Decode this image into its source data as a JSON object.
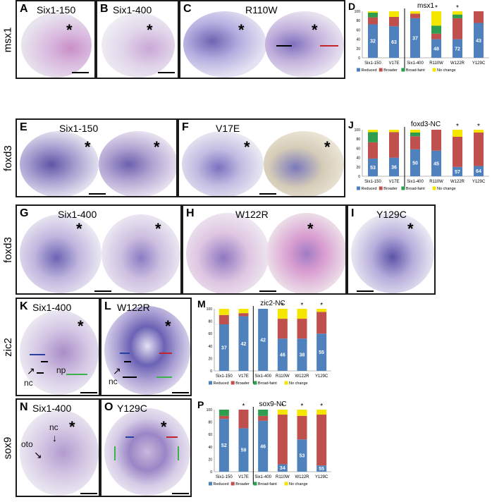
{
  "figure": {
    "row_labels": [
      "msx1",
      "foxd3",
      "foxd3",
      "zic2",
      "sox9"
    ],
    "panels": {
      "A": {
        "letter": "A",
        "title": "Six1-150"
      },
      "B": {
        "letter": "B",
        "title": "Six1-400"
      },
      "C": {
        "letter": "C",
        "title": "R110W"
      },
      "D": {
        "letter": "D"
      },
      "E": {
        "letter": "E",
        "title": "Six1-150"
      },
      "F": {
        "letter": "F",
        "title": "V17E"
      },
      "J": {
        "letter": "J"
      },
      "G": {
        "letter": "G",
        "title": "Six1-400"
      },
      "H": {
        "letter": "H",
        "title": "W122R"
      },
      "I": {
        "letter": "I",
        "title": "Y129C"
      },
      "K": {
        "letter": "K",
        "title": "Six1-400"
      },
      "L": {
        "letter": "L",
        "title": "W122R"
      },
      "M": {
        "letter": "M"
      },
      "N": {
        "letter": "N",
        "title": "Six1-400"
      },
      "O": {
        "letter": "O",
        "title": "Y129C"
      },
      "P": {
        "letter": "P"
      }
    },
    "asterisk": "*",
    "tissue_labels": {
      "nc": "nc",
      "np": "np",
      "oto": "oto"
    },
    "colors": {
      "embryo_bg": "#ececf2",
      "stain_purple": "#5b4b9c",
      "stain_magenta": "#c86bb8",
      "marker_blue": "#2a3fa0",
      "marker_red": "#c0262b",
      "marker_green": "#3cb04a"
    }
  },
  "chart_data": [
    {
      "id": "D",
      "type": "bar",
      "stacked": true,
      "title": "msx1",
      "categories": [
        "Six1-150",
        "V17E",
        "Six1-400",
        "R110W",
        "W122R",
        "Y129C"
      ],
      "n_labels": [
        "32",
        "63",
        "37",
        "48",
        "72",
        "43"
      ],
      "significant": [
        "",
        "",
        "",
        "*",
        "*",
        ""
      ],
      "separator_after": 1,
      "ylim": [
        0,
        100
      ],
      "yticks": [
        0,
        20,
        40,
        60,
        80,
        100
      ],
      "series": [
        {
          "name": "Reduced",
          "color": "#4f81bd",
          "values": [
            72,
            68,
            85,
            40,
            40,
            75
          ]
        },
        {
          "name": "Broader",
          "color": "#c0504d",
          "values": [
            15,
            20,
            10,
            12,
            45,
            25
          ]
        },
        {
          "name": "Broad-faint",
          "color": "#2e9e4e",
          "values": [
            10,
            0,
            0,
            17,
            8,
            0
          ]
        },
        {
          "name": "No change",
          "color": "#f5e600",
          "values": [
            3,
            12,
            5,
            31,
            7,
            0
          ]
        }
      ]
    },
    {
      "id": "J",
      "type": "bar",
      "stacked": true,
      "title": "foxd3-NC",
      "categories": [
        "Six1-150",
        "V17E",
        "Six1-400",
        "R110W",
        "W122R",
        "Y129C"
      ],
      "n_labels": [
        "53",
        "36",
        "50",
        "45",
        "57",
        "64"
      ],
      "significant": [
        "",
        "",
        "",
        "",
        "*",
        "*"
      ],
      "separator_after": 1,
      "ylim": [
        0,
        100
      ],
      "yticks": [
        0,
        20,
        40,
        60,
        80,
        100
      ],
      "series": [
        {
          "name": "Reduced",
          "color": "#4f81bd",
          "values": [
            38,
            40,
            58,
            55,
            20,
            22
          ]
        },
        {
          "name": "Broader",
          "color": "#c0504d",
          "values": [
            35,
            55,
            28,
            45,
            65,
            72
          ]
        },
        {
          "name": "Broad-faint",
          "color": "#2e9e4e",
          "values": [
            22,
            0,
            8,
            0,
            0,
            0
          ]
        },
        {
          "name": "No change",
          "color": "#f5e600",
          "values": [
            5,
            5,
            6,
            0,
            15,
            6
          ]
        }
      ]
    },
    {
      "id": "M",
      "type": "bar",
      "stacked": true,
      "title": "zic2-NC",
      "categories": [
        "Six1-150",
        "V17E",
        "Six1-400",
        "R110W",
        "W122R",
        "Y129C"
      ],
      "n_labels": [
        "37",
        "42",
        "42",
        "46",
        "38",
        "55"
      ],
      "significant": [
        "",
        "",
        "",
        "*",
        "*",
        "*"
      ],
      "separator_after": 1,
      "ylim": [
        0,
        100
      ],
      "yticks": [
        0,
        20,
        40,
        60,
        80,
        100
      ],
      "series": [
        {
          "name": "Reduced",
          "color": "#4f81bd",
          "values": [
            75,
            88,
            100,
            52,
            52,
            60
          ]
        },
        {
          "name": "Broader",
          "color": "#c0504d",
          "values": [
            15,
            5,
            0,
            32,
            32,
            35
          ]
        },
        {
          "name": "Broad-faint",
          "color": "#2e9e4e",
          "values": [
            0,
            0,
            0,
            0,
            0,
            0
          ]
        },
        {
          "name": "No change",
          "color": "#f5e600",
          "values": [
            10,
            7,
            0,
            16,
            16,
            5
          ]
        }
      ]
    },
    {
      "id": "P",
      "type": "bar",
      "stacked": true,
      "title": "sox9-NC",
      "categories": [
        "Six1-150",
        "V17E",
        "Six1-400",
        "R110W",
        "W122R",
        "Y129C"
      ],
      "n_labels": [
        "52",
        "59",
        "46",
        "34",
        "53",
        "55"
      ],
      "significant": [
        "",
        "*",
        "",
        "*",
        "*",
        "*"
      ],
      "separator_after": 1,
      "ylim": [
        0,
        100
      ],
      "yticks": [
        0,
        20,
        40,
        60,
        80,
        100
      ],
      "series": [
        {
          "name": "Reduced",
          "color": "#4f81bd",
          "values": [
            85,
            70,
            82,
            12,
            52,
            10
          ]
        },
        {
          "name": "Broader",
          "color": "#c0504d",
          "values": [
            5,
            30,
            8,
            80,
            38,
            82
          ]
        },
        {
          "name": "Broad-faint",
          "color": "#2e9e4e",
          "values": [
            10,
            0,
            10,
            0,
            0,
            0
          ]
        },
        {
          "name": "No change",
          "color": "#f5e600",
          "values": [
            0,
            0,
            0,
            8,
            10,
            8
          ]
        }
      ]
    }
  ]
}
